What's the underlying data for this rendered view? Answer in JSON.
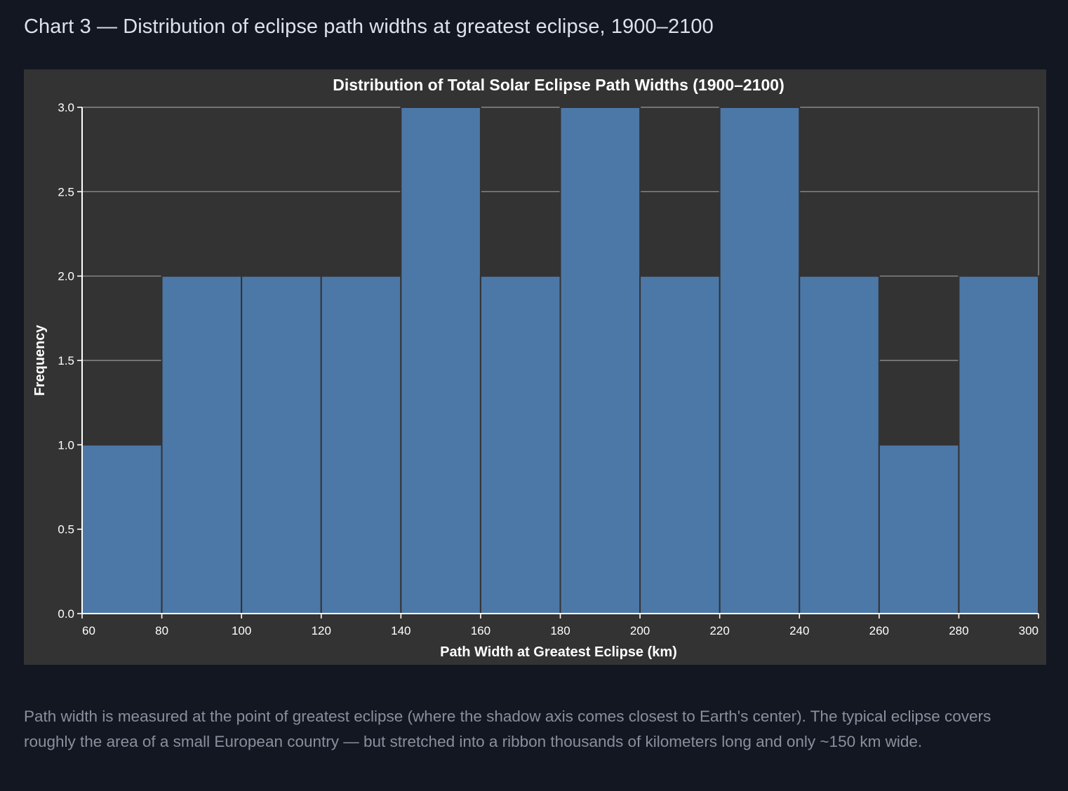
{
  "page": {
    "title": "Chart 3 — Distribution of eclipse path widths at greatest eclipse, 1900–2100",
    "caption": "Path width is measured at the point of greatest eclipse (where the shadow axis comes closest to Earth's center). The typical eclipse covers roughly the area of a small European country — but stretched into a ribbon thousands of kilometers long and only ~150 km wide."
  },
  "colors": {
    "page_background": "#131722",
    "panel_background": "#333333",
    "bar_fill": "#4c78a8",
    "gridline": "#8a8a8a",
    "text": "#ffffff"
  },
  "chart_data": {
    "type": "bar",
    "subtype": "histogram",
    "title": "Distribution of Total Solar Eclipse Path Widths (1900–2100)",
    "xlabel": "Path Width at Greatest Eclipse (km)",
    "ylabel": "Frequency",
    "xlim": [
      60,
      300
    ],
    "ylim": [
      0,
      3
    ],
    "bins": [
      {
        "start": 60,
        "end": 80,
        "count": 1
      },
      {
        "start": 80,
        "end": 100,
        "count": 2
      },
      {
        "start": 100,
        "end": 120,
        "count": 2
      },
      {
        "start": 120,
        "end": 140,
        "count": 2
      },
      {
        "start": 140,
        "end": 160,
        "count": 3
      },
      {
        "start": 160,
        "end": 180,
        "count": 2
      },
      {
        "start": 180,
        "end": 200,
        "count": 3
      },
      {
        "start": 200,
        "end": 220,
        "count": 2
      },
      {
        "start": 220,
        "end": 240,
        "count": 3
      },
      {
        "start": 240,
        "end": 260,
        "count": 2
      },
      {
        "start": 260,
        "end": 280,
        "count": 1
      },
      {
        "start": 280,
        "end": 300,
        "count": 2
      }
    ],
    "x_ticks": [
      60,
      80,
      100,
      120,
      140,
      160,
      180,
      200,
      220,
      240,
      260,
      280,
      300
    ],
    "y_ticks": [
      "0.0",
      "0.5",
      "1.0",
      "1.5",
      "2.0",
      "2.5",
      "3.0"
    ],
    "grid": "horizontal",
    "legend": "none"
  }
}
